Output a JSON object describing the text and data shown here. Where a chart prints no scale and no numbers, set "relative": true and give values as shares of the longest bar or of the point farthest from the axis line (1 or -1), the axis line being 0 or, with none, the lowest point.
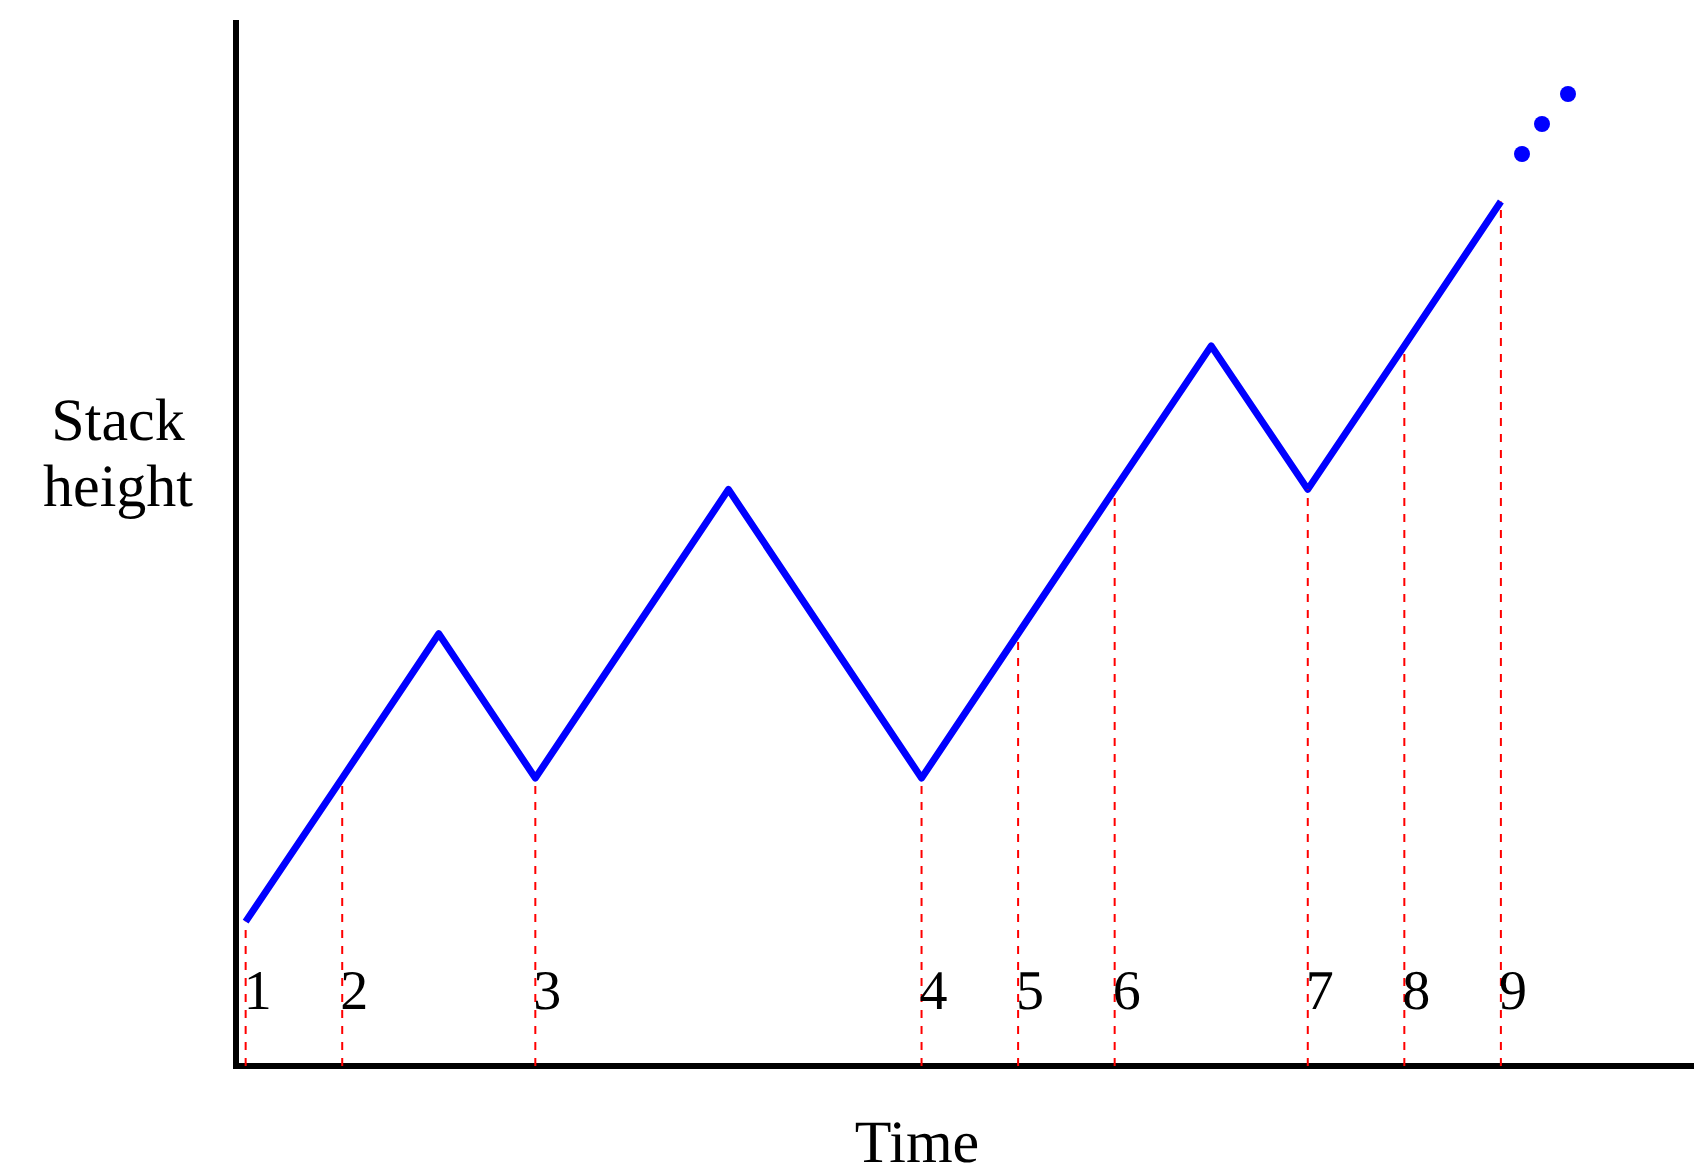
{
  "chart_data": {
    "type": "line",
    "xlabel": "Time",
    "ylabel": "Stack height",
    "relative": true,
    "categories": [
      "1",
      "2",
      null,
      "3",
      null,
      null,
      null,
      "4",
      "5",
      "6",
      null,
      "7",
      "8",
      "9"
    ],
    "legend": false,
    "marker": "none",
    "line_style": "solid",
    "series": [
      {
        "color": "#0000ff",
        "values": [
          0.167,
          0.333,
          0.5,
          0.333,
          0.5,
          0.667,
          0.5,
          0.333,
          0.5,
          0.667,
          0.833,
          0.667,
          0.833,
          1
        ]
      }
    ],
    "ref_lines": [
      {
        "axis": "x",
        "value": "1",
        "color": "#ff0000",
        "line_style": "dashed"
      },
      {
        "axis": "x",
        "value": "2",
        "color": "#ff0000",
        "line_style": "dashed"
      },
      {
        "axis": "x",
        "value": "3",
        "color": "#ff0000",
        "line_style": "dashed"
      },
      {
        "axis": "x",
        "value": "4",
        "color": "#ff0000",
        "line_style": "dashed"
      },
      {
        "axis": "x",
        "value": "5",
        "color": "#ff0000",
        "line_style": "dashed"
      },
      {
        "axis": "x",
        "value": "6",
        "color": "#ff0000",
        "line_style": "dashed"
      },
      {
        "axis": "x",
        "value": "7",
        "color": "#ff0000",
        "line_style": "dashed"
      },
      {
        "axis": "x",
        "value": "8",
        "color": "#ff0000",
        "line_style": "dashed"
      },
      {
        "axis": "x",
        "value": "9",
        "color": "#ff0000",
        "line_style": "dashed"
      }
    ]
  }
}
